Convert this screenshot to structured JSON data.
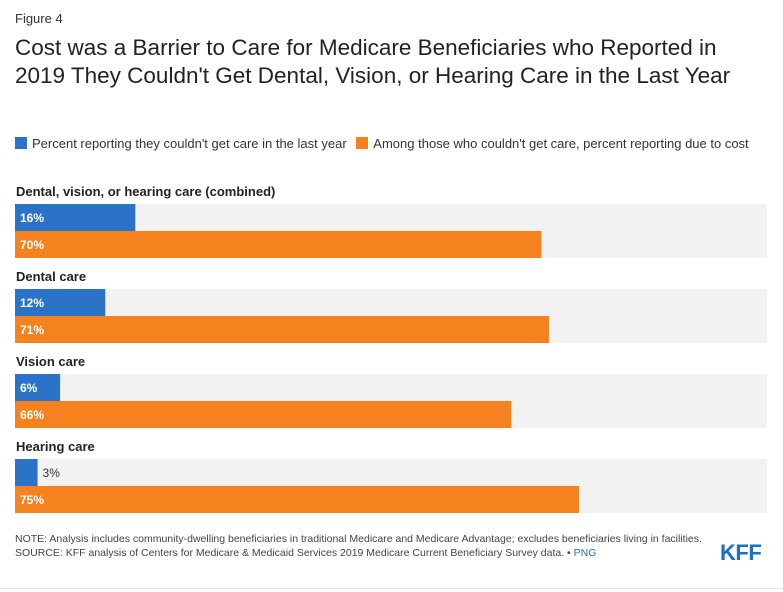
{
  "figure_label": "Figure 4",
  "title": "Cost was a Barrier to Care for Medicare Beneficiaries who Reported in 2019 They Couldn't Get Dental, Vision, or Hearing Care in the Last Year",
  "legend": {
    "item1": "Percent reporting they couldn't get care in the last year",
    "item2": "Among those who couldn't get care, percent reporting due to cost"
  },
  "colors": {
    "blue": "#2a73c9",
    "orange": "#f5821f",
    "track": "#f2f2f2"
  },
  "chart_data": {
    "type": "bar",
    "orientation": "horizontal",
    "xlim": [
      0,
      100
    ],
    "categories": [
      "Dental, vision, or hearing care (combined)",
      "Dental care",
      "Vision care",
      "Hearing care"
    ],
    "series": [
      {
        "name": "Percent reporting they couldn't get care in the last year",
        "values": [
          16,
          12,
          6,
          3
        ],
        "labels": [
          "16%",
          "12%",
          "6%",
          "3%"
        ]
      },
      {
        "name": "Among those who couldn't get care, percent reporting due to cost",
        "values": [
          70,
          71,
          66,
          75
        ],
        "labels": [
          "70%",
          "71%",
          "66%",
          "75%"
        ]
      }
    ]
  },
  "notes": {
    "note": "NOTE: Analysis includes community-dwelling beneficiaries in traditional Medicare and Medicare Advantage; excludes beneficiaries living in facilities.",
    "source": "SOURCE: KFF analysis of Centers for Medicare & Medicaid Services 2019 Medicare Current Beneficiary Survey data. •",
    "link": "PNG"
  },
  "logo_text": "KFF"
}
